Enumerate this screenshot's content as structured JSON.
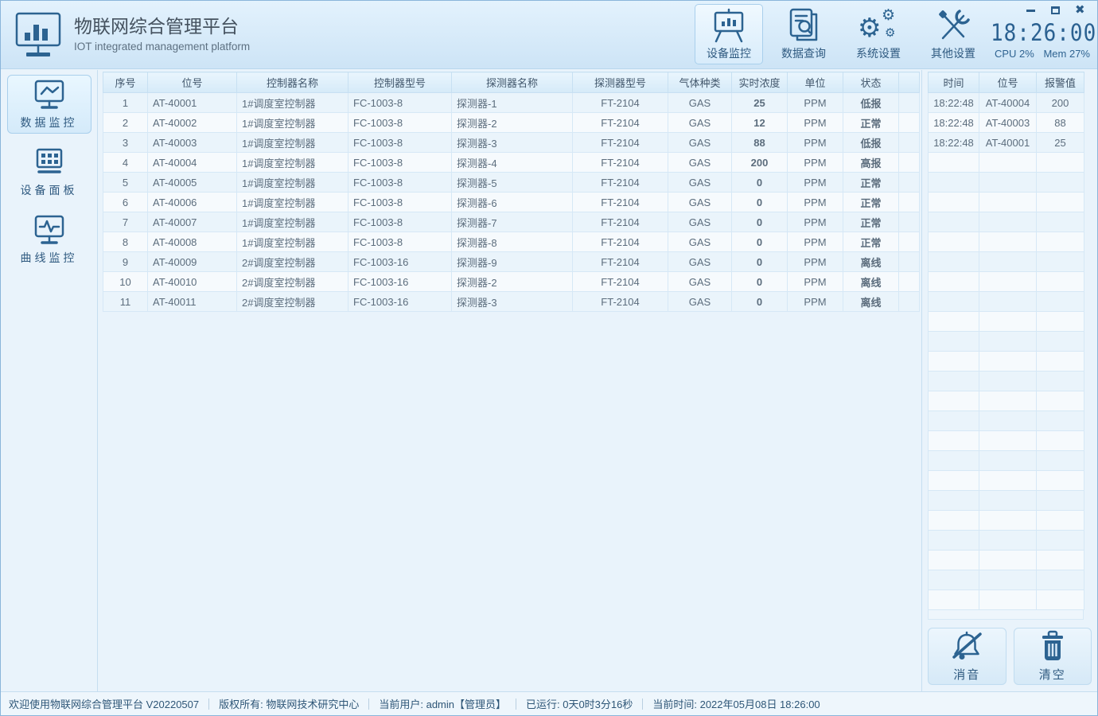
{
  "window": {
    "title": "物联网综合管理平台",
    "subtitle": "IOT integrated management platform"
  },
  "toolbar": {
    "buttons": [
      {
        "label": "设备监控",
        "active": true
      },
      {
        "label": "数据查询",
        "active": false
      },
      {
        "label": "系统设置",
        "active": false
      },
      {
        "label": "其他设置",
        "active": false
      }
    ],
    "clock": "18:26:00",
    "cpu": "CPU 2%",
    "mem": "Mem 27%"
  },
  "sidebar": {
    "items": [
      {
        "label": "数据监控",
        "active": true
      },
      {
        "label": "设备面板",
        "active": false
      },
      {
        "label": "曲线监控",
        "active": false
      }
    ]
  },
  "main_table": {
    "headers": [
      "序号",
      "位号",
      "控制器名称",
      "控制器型号",
      "探测器名称",
      "探测器型号",
      "气体种类",
      "实时浓度",
      "单位",
      "状态"
    ],
    "rows": [
      {
        "no": "1",
        "tag": "AT-40001",
        "controller_name": "1#调度室控制器",
        "controller_model": "FC-1003-8",
        "detector_name": "探测器-1",
        "detector_model": "FT-2104",
        "gas": "GAS",
        "value": "25",
        "unit": "PPM",
        "status": "低报",
        "state": "low"
      },
      {
        "no": "2",
        "tag": "AT-40002",
        "controller_name": "1#调度室控制器",
        "controller_model": "FC-1003-8",
        "detector_name": "探测器-2",
        "detector_model": "FT-2104",
        "gas": "GAS",
        "value": "12",
        "unit": "PPM",
        "status": "正常",
        "state": "normal"
      },
      {
        "no": "3",
        "tag": "AT-40003",
        "controller_name": "1#调度室控制器",
        "controller_model": "FC-1003-8",
        "detector_name": "探测器-3",
        "detector_model": "FT-2104",
        "gas": "GAS",
        "value": "88",
        "unit": "PPM",
        "status": "低报",
        "state": "low"
      },
      {
        "no": "4",
        "tag": "AT-40004",
        "controller_name": "1#调度室控制器",
        "controller_model": "FC-1003-8",
        "detector_name": "探测器-4",
        "detector_model": "FT-2104",
        "gas": "GAS",
        "value": "200",
        "unit": "PPM",
        "status": "高报",
        "state": "high"
      },
      {
        "no": "5",
        "tag": "AT-40005",
        "controller_name": "1#调度室控制器",
        "controller_model": "FC-1003-8",
        "detector_name": "探测器-5",
        "detector_model": "FT-2104",
        "gas": "GAS",
        "value": "0",
        "unit": "PPM",
        "status": "正常",
        "state": "normal"
      },
      {
        "no": "6",
        "tag": "AT-40006",
        "controller_name": "1#调度室控制器",
        "controller_model": "FC-1003-8",
        "detector_name": "探测器-6",
        "detector_model": "FT-2104",
        "gas": "GAS",
        "value": "0",
        "unit": "PPM",
        "status": "正常",
        "state": "normal"
      },
      {
        "no": "7",
        "tag": "AT-40007",
        "controller_name": "1#调度室控制器",
        "controller_model": "FC-1003-8",
        "detector_name": "探测器-7",
        "detector_model": "FT-2104",
        "gas": "GAS",
        "value": "0",
        "unit": "PPM",
        "status": "正常",
        "state": "normal"
      },
      {
        "no": "8",
        "tag": "AT-40008",
        "controller_name": "1#调度室控制器",
        "controller_model": "FC-1003-8",
        "detector_name": "探测器-8",
        "detector_model": "FT-2104",
        "gas": "GAS",
        "value": "0",
        "unit": "PPM",
        "status": "正常",
        "state": "normal"
      },
      {
        "no": "9",
        "tag": "AT-40009",
        "controller_name": "2#调度室控制器",
        "controller_model": "FC-1003-16",
        "detector_name": "探测器-9",
        "detector_model": "FT-2104",
        "gas": "GAS",
        "value": "0",
        "unit": "PPM",
        "status": "离线",
        "state": "offline"
      },
      {
        "no": "10",
        "tag": "AT-40010",
        "controller_name": "2#调度室控制器",
        "controller_model": "FC-1003-16",
        "detector_name": "探测器-2",
        "detector_model": "FT-2104",
        "gas": "GAS",
        "value": "0",
        "unit": "PPM",
        "status": "离线",
        "state": "offline"
      },
      {
        "no": "11",
        "tag": "AT-40011",
        "controller_name": "2#调度室控制器",
        "controller_model": "FC-1003-16",
        "detector_name": "探测器-3",
        "detector_model": "FT-2104",
        "gas": "GAS",
        "value": "0",
        "unit": "PPM",
        "status": "离线",
        "state": "offline"
      }
    ]
  },
  "alarm_panel": {
    "headers": [
      "时间",
      "位号",
      "报警值"
    ],
    "rows": [
      {
        "time": "18:22:48",
        "tag": "AT-40004",
        "value": "200"
      },
      {
        "time": "18:22:48",
        "tag": "AT-40003",
        "value": "88"
      },
      {
        "time": "18:22:48",
        "tag": "AT-40001",
        "value": "25"
      }
    ],
    "empty_rows": 23
  },
  "actions": {
    "mute": "消音",
    "clear": "清空"
  },
  "statusbar": {
    "items": [
      "欢迎使用物联网综合管理平台 V20220507",
      "版权所有: 物联网技术研究中心",
      "当前用户: admin【管理员】",
      "已运行: 0天0时3分16秒",
      "当前时间: 2022年05月08日 18:26:00"
    ]
  },
  "colors": {
    "icon_accent": "#2c6391",
    "status_low": "#ff9800",
    "status_normal": "#12b09a",
    "status_high": "#dc1a4e",
    "status_offline": "#9a2fd6"
  }
}
